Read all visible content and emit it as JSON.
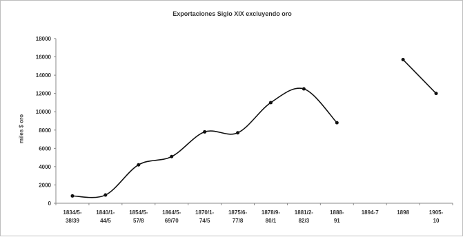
{
  "chart_data": {
    "type": "line",
    "title": "Exportaciones Siglo XIX excluyendo oro",
    "xlabel": "",
    "ylabel": "miles $ oro",
    "ylim": [
      0,
      18000
    ],
    "yticks": [
      0,
      2000,
      4000,
      6000,
      8000,
      10000,
      12000,
      14000,
      16000,
      18000
    ],
    "grid": false,
    "legend": "none",
    "smooth": true,
    "categories": [
      [
        "1834/5-",
        "38/39"
      ],
      [
        "1840/1-",
        "44/5"
      ],
      [
        "1854/5-",
        "57/8"
      ],
      [
        "1864/5-",
        "69/70"
      ],
      [
        "1870/1-",
        "74/5"
      ],
      [
        "1875/6-",
        "77/8"
      ],
      [
        "1878/9-",
        "80/1"
      ],
      [
        "1881/2-",
        "82/3"
      ],
      [
        "1888-",
        "91"
      ],
      [
        "1894-7"
      ],
      [
        "1898"
      ],
      [
        "1905-",
        "10"
      ]
    ],
    "series": [
      {
        "values": [
          800,
          900,
          4200,
          5100,
          7800,
          7700,
          11000,
          12500,
          8800,
          null,
          15700,
          12000
        ]
      }
    ],
    "line_color": "#111111"
  }
}
